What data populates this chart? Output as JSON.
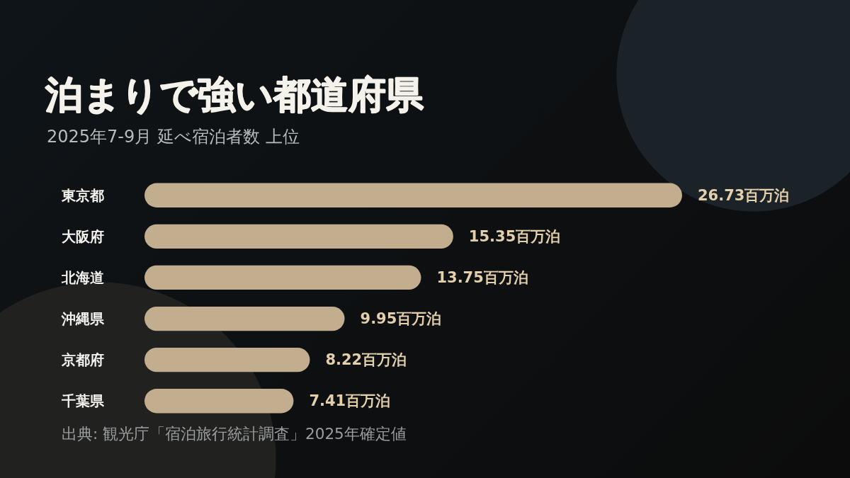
{
  "chart_data": {
    "type": "bar",
    "orientation": "horizontal",
    "title": "泊まりで強い都道府県",
    "subtitle": "2025年7-9月 延べ宿泊者数 上位",
    "categories": [
      "東京都",
      "大阪府",
      "北海道",
      "沖縄県",
      "京都府",
      "千葉県"
    ],
    "values": [
      26.73,
      15.35,
      13.75,
      9.95,
      8.22,
      7.41
    ],
    "color": "#c2ae8f",
    "value_labels": [
      "26.73百万泊",
      "15.35百万泊",
      "13.75百万泊",
      "9.95百万泊",
      "8.22百万泊",
      "7.41百万泊"
    ],
    "annotations": [
      "出典: 観光庁「宿泊旅行統計調査」2025年確定値"
    ]
  }
}
